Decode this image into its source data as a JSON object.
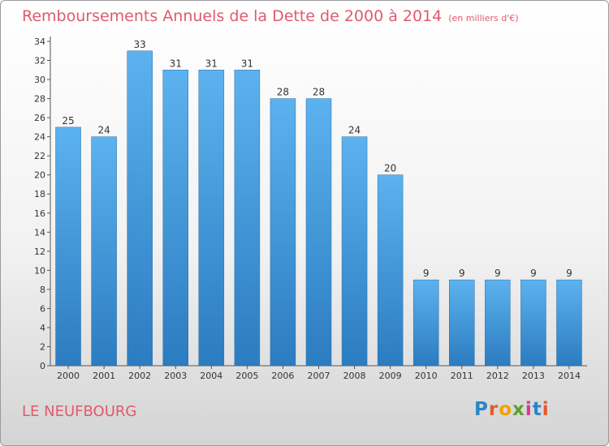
{
  "header": {
    "title": "Remboursements Annuels de la Dette de 2000 à 2014",
    "unit": "(en milliers d'€)"
  },
  "footer": {
    "location": "LE NEUFBOURG",
    "logo": "Proxiti"
  },
  "colors": {
    "title": "#e05a6d",
    "bar_top": "#5cb2ee",
    "bar_bottom": "#2b7cc0"
  },
  "chart_data": {
    "type": "bar",
    "title": "Remboursements Annuels de la Dette de 2000 à 2014",
    "subtitle": "(en milliers d'€)",
    "xlabel": "",
    "ylabel": "",
    "categories": [
      "2000",
      "2001",
      "2002",
      "2003",
      "2004",
      "2005",
      "2006",
      "2007",
      "2008",
      "2009",
      "2010",
      "2011",
      "2012",
      "2013",
      "2014"
    ],
    "values": [
      25,
      24,
      33,
      31,
      31,
      31,
      28,
      28,
      24,
      20,
      9,
      9,
      9,
      9,
      9
    ],
    "ylim": [
      0,
      34
    ],
    "yticks": [
      0,
      2,
      4,
      6,
      8,
      10,
      12,
      14,
      16,
      18,
      20,
      22,
      24,
      26,
      28,
      30,
      32,
      34
    ],
    "grid": false,
    "legend": "none",
    "data_labels": true
  }
}
